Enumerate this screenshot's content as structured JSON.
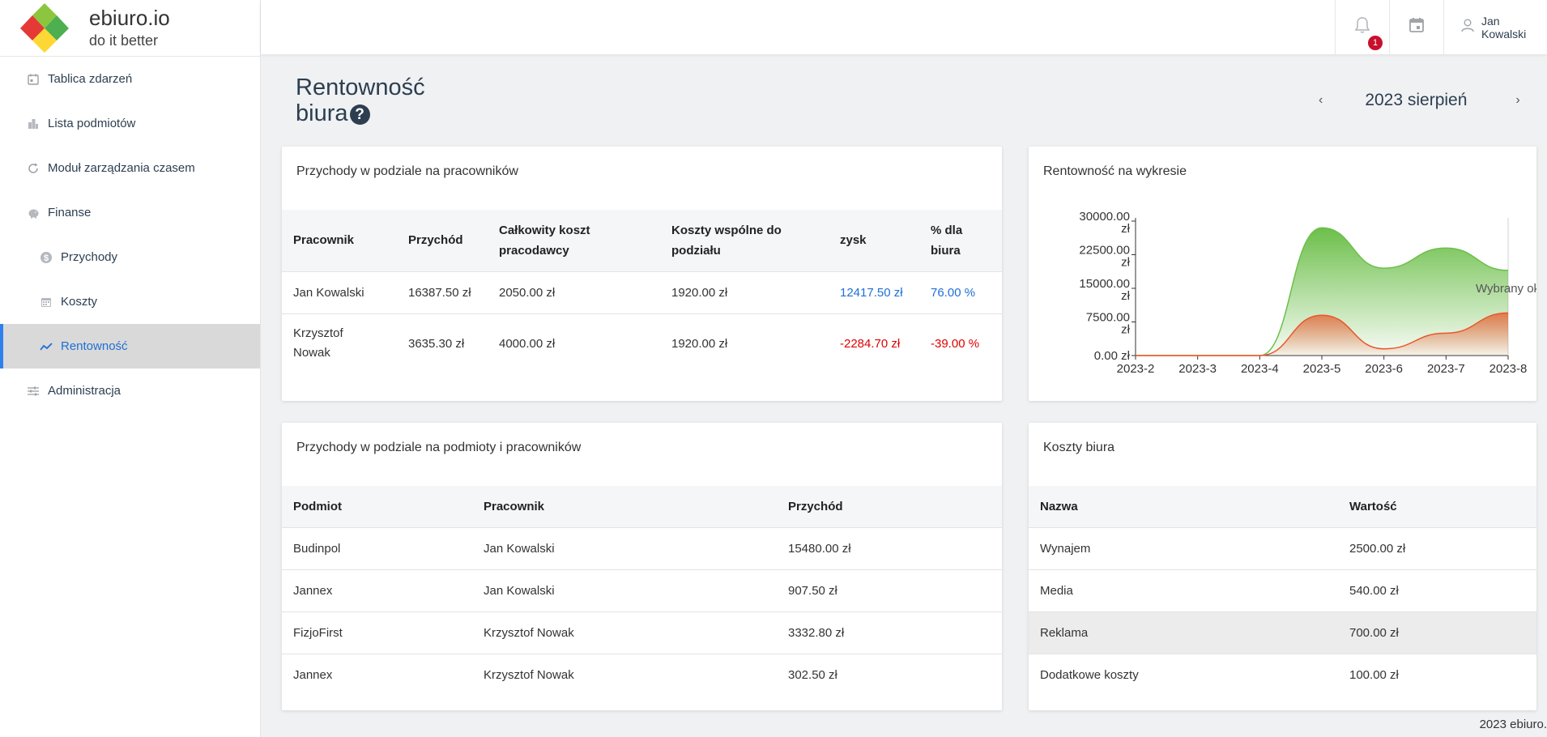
{
  "brand": {
    "title": "ebiuro.io",
    "subtitle": "do it better"
  },
  "sidebar": {
    "items": [
      {
        "label": "Tablica zdarzeń",
        "icon": "calendar-icon"
      },
      {
        "label": "Lista podmiotów",
        "icon": "buildings-icon"
      },
      {
        "label": "Moduł zarządzania czasem",
        "icon": "time-icon"
      },
      {
        "label": "Finanse",
        "icon": "piggy-bank-icon"
      },
      {
        "label": "Przychody",
        "icon": "dollar-icon"
      },
      {
        "label": "Koszty",
        "icon": "calendar-grid-icon"
      },
      {
        "label": "Rentowność",
        "icon": "trend-icon"
      },
      {
        "label": "Administracja",
        "icon": "sliders-icon"
      }
    ]
  },
  "header": {
    "notification_count": "1",
    "user_name": "Jan Kowalski"
  },
  "page": {
    "title_line1": "Rentowność",
    "title_line2": "biura",
    "help": "?"
  },
  "month": {
    "label": "2023 sierpień",
    "prev": "‹",
    "next": "›"
  },
  "employee_revenue": {
    "title": "Przychody w podziale na pracowników",
    "headers": {
      "employee": "Pracownik",
      "revenue": "Przychód",
      "total_cost_1": "Całkowity koszt",
      "total_cost_2": "pracodawcy",
      "shared_cost_1": "Koszty wspólne do",
      "shared_cost_2": "podziału",
      "profit": "zysk",
      "pct_1": "% dla",
      "pct_2": "biura"
    },
    "rows": [
      {
        "employee": "Jan Kowalski",
        "revenue": "16387.50 zł",
        "total_cost": "2050.00 zł",
        "shared_cost": "1920.00 zł",
        "profit": "12417.50 zł",
        "pct": "76.00 %"
      },
      {
        "employee_1": "Krzysztof",
        "employee_2": "Nowak",
        "revenue": "3635.30 zł",
        "total_cost": "4000.00 zł",
        "shared_cost": "1920.00 zł",
        "profit": "-2284.70 zł",
        "pct": "-39.00 %"
      }
    ]
  },
  "chart_card": {
    "title": "Rentowność na wykresie"
  },
  "chart_data": {
    "type": "area",
    "categories": [
      "2023-2",
      "2023-3",
      "2023-4",
      "2023-5",
      "2023-6",
      "2023-7",
      "2023-8"
    ],
    "series": [
      {
        "values": [
          0,
          0,
          0,
          28500,
          19500,
          24000,
          19000
        ],
        "color": "#6cbf4a"
      },
      {
        "values": [
          0,
          0,
          0,
          9000,
          1500,
          5000,
          9500
        ],
        "color": "#e8572a"
      }
    ],
    "y_ticks": [
      {
        "line1": "30000.00",
        "line2": "zł",
        "value": 30000
      },
      {
        "line1": "22500.00",
        "line2": "zł",
        "value": 22500
      },
      {
        "line1": "15000.00",
        "line2": "zł",
        "value": 15000
      },
      {
        "line1": "7500.00",
        "line2": "zł",
        "value": 7500
      },
      {
        "line1": "0.00 zł",
        "line2": "",
        "value": 0
      }
    ],
    "ylim": [
      0,
      30000
    ],
    "annotation": "Wybrany okr"
  },
  "entity_revenue": {
    "title": "Przychody w podziale na podmioty i pracowników",
    "headers": {
      "entity": "Podmiot",
      "employee": "Pracownik",
      "revenue": "Przychód"
    },
    "rows": [
      {
        "entity": "Budinpol",
        "employee": "Jan Kowalski",
        "revenue": "15480.00 zł"
      },
      {
        "entity": "Jannex",
        "employee": "Jan Kowalski",
        "revenue": "907.50 zł"
      },
      {
        "entity": "FizjoFirst",
        "employee": "Krzysztof Nowak",
        "revenue": "3332.80 zł"
      },
      {
        "entity": "Jannex",
        "employee": "Krzysztof Nowak",
        "revenue": "302.50 zł"
      }
    ]
  },
  "office_costs": {
    "title": "Koszty biura",
    "headers": {
      "name": "Nazwa",
      "value": "Wartość"
    },
    "rows": [
      {
        "name": "Wynajem",
        "value": "2500.00 zł"
      },
      {
        "name": "Media",
        "value": "540.00 zł"
      },
      {
        "name": "Reklama",
        "value": "700.00 zł"
      },
      {
        "name": "Dodatkowe koszty",
        "value": "100.00 zł"
      }
    ]
  },
  "footer": {
    "text": "2023 ebiuro."
  }
}
